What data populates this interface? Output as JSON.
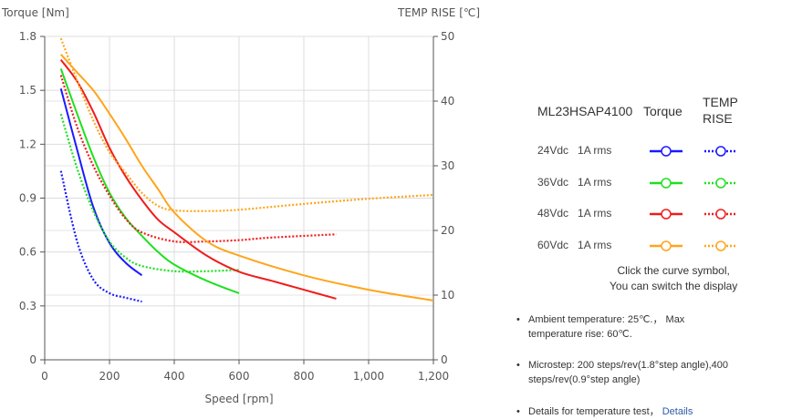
{
  "chart_data": {
    "type": "line",
    "xlabel": "Speed [rpm]",
    "ylabel": "Torque  [Nm]",
    "y2label": "TEMP RISE [℃]",
    "xlim": [
      0,
      1200
    ],
    "ylim": [
      0,
      1.8
    ],
    "y2lim": [
      0,
      50
    ],
    "xticks": [
      "0",
      "200",
      "400",
      "600",
      "800",
      "1,000",
      "1,200"
    ],
    "xtick_values": [
      0,
      200,
      400,
      600,
      800,
      1000,
      1200
    ],
    "yticks": [
      "0",
      "0.3",
      "0.6",
      "0.9",
      "1.2",
      "1.5",
      "1.8"
    ],
    "ytick_values": [
      0,
      0.3,
      0.6,
      0.9,
      1.2,
      1.5,
      1.8
    ],
    "y2ticks": [
      "0",
      "10",
      "20",
      "30",
      "40",
      "50"
    ],
    "y2tick_values": [
      0,
      10,
      20,
      30,
      40,
      50
    ],
    "grid": true,
    "series": [
      {
        "name": "24Vdc 1A rms Torque",
        "axis": "left",
        "style": "solid",
        "color": "#1a1aff",
        "x": [
          50,
          100,
          150,
          200,
          250,
          300
        ],
        "values": [
          1.51,
          1.17,
          0.85,
          0.65,
          0.54,
          0.47
        ]
      },
      {
        "name": "24Vdc 1A rms TEMP RISE",
        "axis": "right",
        "style": "dotted",
        "color": "#1a1aff",
        "x": [
          50,
          100,
          150,
          200,
          250,
          300
        ],
        "values": [
          29.2,
          18.3,
          12.4,
          10.3,
          9.6,
          9.0
        ]
      },
      {
        "name": "36Vdc 1A rms Torque",
        "axis": "left",
        "style": "solid",
        "color": "#1fe01f",
        "x": [
          50,
          100,
          150,
          200,
          250,
          300,
          350,
          400,
          500,
          600
        ],
        "values": [
          1.62,
          1.37,
          1.13,
          0.93,
          0.79,
          0.69,
          0.6,
          0.53,
          0.44,
          0.37
        ]
      },
      {
        "name": "36Vdc 1A rms TEMP RISE",
        "axis": "right",
        "style": "dotted",
        "color": "#1fe01f",
        "x": [
          50,
          100,
          150,
          200,
          250,
          300,
          400,
          500,
          600
        ],
        "values": [
          38.0,
          29.6,
          23.0,
          18.3,
          15.8,
          14.5,
          13.7,
          13.7,
          13.9
        ]
      },
      {
        "name": "48Vdc 1A rms Torque",
        "axis": "left",
        "style": "solid",
        "color": "#f01c1c",
        "x": [
          50,
          100,
          150,
          200,
          250,
          300,
          350,
          400,
          500,
          600,
          700,
          800,
          900
        ],
        "values": [
          1.67,
          1.55,
          1.38,
          1.18,
          1.02,
          0.89,
          0.78,
          0.71,
          0.58,
          0.49,
          0.44,
          0.39,
          0.34
        ]
      },
      {
        "name": "48Vdc 1A rms TEMP RISE",
        "axis": "right",
        "style": "dotted",
        "color": "#f01c1c",
        "x": [
          50,
          100,
          150,
          200,
          250,
          300,
          400,
          500,
          600,
          700,
          900
        ],
        "values": [
          44.0,
          36.0,
          30.0,
          25.4,
          21.8,
          19.7,
          18.3,
          18.3,
          18.5,
          18.9,
          19.4
        ]
      },
      {
        "name": "60Vdc 1A rms Torque",
        "axis": "left",
        "style": "solid",
        "color": "#ffa51a",
        "x": [
          50,
          100,
          150,
          200,
          250,
          300,
          350,
          400,
          500,
          600,
          800,
          1000,
          1200
        ],
        "values": [
          1.7,
          1.6,
          1.5,
          1.37,
          1.23,
          1.08,
          0.95,
          0.82,
          0.66,
          0.58,
          0.47,
          0.39,
          0.33
        ]
      },
      {
        "name": "60Vdc 1A rms TEMP RISE",
        "axis": "right",
        "style": "dotted",
        "color": "#ffa51a",
        "x": [
          50,
          100,
          150,
          200,
          250,
          300,
          350,
          400,
          500,
          600,
          800,
          1000,
          1200
        ],
        "values": [
          49.7,
          43.2,
          37.0,
          32.1,
          28.9,
          25.8,
          23.8,
          23.1,
          23.0,
          23.2,
          24.1,
          24.9,
          25.5
        ]
      }
    ]
  },
  "legend": {
    "model": "ML23HSAP4100",
    "torque_header": "Torque",
    "temp_header_line1": "TEMP",
    "temp_header_line2": "RISE",
    "rows": [
      {
        "voltage": "24Vdc",
        "current": "1A rms",
        "color": "#1a1aff"
      },
      {
        "voltage": "36Vdc",
        "current": "1A rms",
        "color": "#1fe01f"
      },
      {
        "voltage": "48Vdc",
        "current": "1A rms",
        "color": "#f01c1c"
      },
      {
        "voltage": "60Vdc",
        "current": "1A rms",
        "color": "#ffa51a"
      }
    ],
    "note_line1": "Click the curve symbol,",
    "note_line2": "You can switch the display"
  },
  "notes": {
    "ambient_line1": "Ambient temperature: 25℃.， Max",
    "ambient_line2": "temperature rise: 60℃.",
    "microstep_line1": "Microstep: 200 steps/rev(1.8°step angle),400",
    "microstep_line2": "steps/rev(0.9°step angle)",
    "details_text": "Details for temperature test，",
    "details_link": "Details"
  }
}
